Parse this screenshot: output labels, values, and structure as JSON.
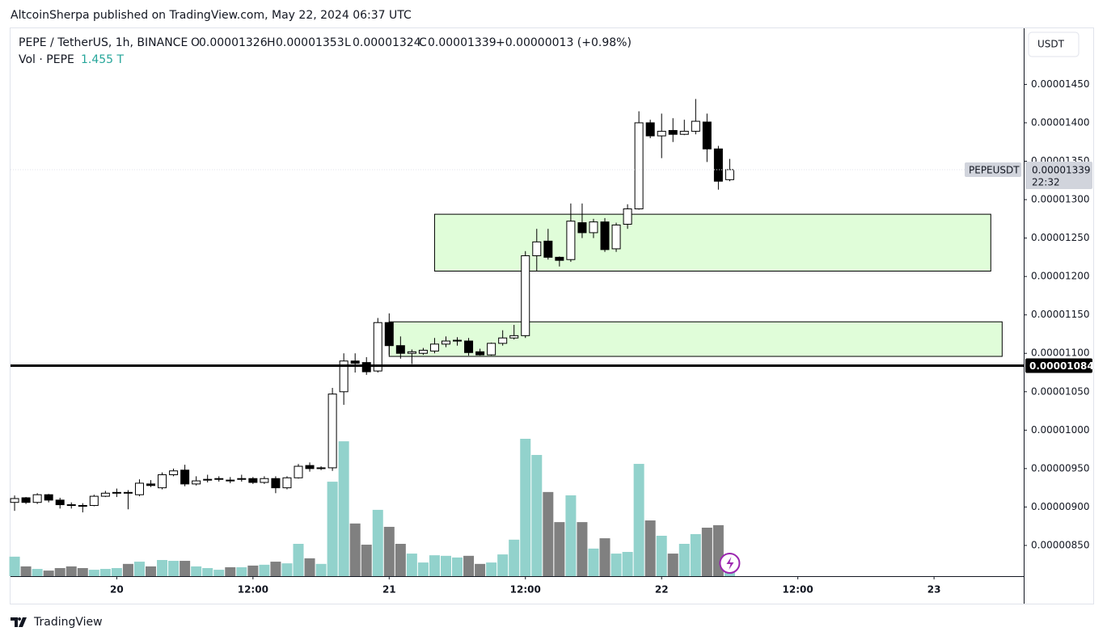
{
  "header": {
    "byline": "AltcoinSherpa published on TradingView.com, May 22, 2024 06:37 UTC",
    "brand": "TradingView"
  },
  "chart_data": {
    "type": "candlestick",
    "legend": {
      "symbol": "PEPE / TetherUS, 1h, BINANCE",
      "o": "O",
      "h": "H",
      "l": "L",
      "c": "C",
      "change": "+0.00000013 (+0.98%)",
      "volume_name": "Vol · PEPE",
      "last_volume_label": "1.455 T"
    },
    "currency": "USDT",
    "ticker": "PEPEUSDT",
    "countdown": "22:32",
    "x": [
      0,
      1,
      2,
      3,
      4,
      5,
      6,
      7,
      8,
      9,
      10,
      11,
      12,
      13,
      14,
      15,
      16,
      17,
      18,
      19,
      20,
      21,
      22,
      23,
      24,
      25,
      26,
      27,
      28,
      29,
      30,
      31,
      32,
      33,
      34,
      35,
      36,
      37,
      38,
      39,
      40,
      41,
      42,
      43,
      44,
      45,
      46,
      47,
      48,
      49,
      50,
      51,
      52,
      53,
      54,
      55,
      56,
      57,
      58,
      59,
      60,
      61,
      62,
      63
    ],
    "open": [
      9.06e-06,
      9.12e-06,
      9.06e-06,
      9.16e-06,
      9.09e-06,
      9.03e-06,
      9.02e-06,
      9.02e-06,
      9.14e-06,
      9.18e-06,
      9.19e-06,
      9.16e-06,
      9.3e-06,
      9.25e-06,
      9.42e-06,
      9.48e-06,
      9.3e-06,
      9.35e-06,
      9.36e-06,
      9.35e-06,
      9.36e-06,
      9.37e-06,
      9.32e-06,
      9.37e-06,
      9.25e-06,
      9.38e-06,
      9.54e-06,
      9.5e-06,
      9.51e-06,
      1.05e-05,
      1.09e-05,
      1.088e-05,
      1.077e-05,
      1.14e-05,
      1.11e-05,
      1.1e-05,
      1.1e-05,
      1.103e-05,
      1.112e-05,
      1.116e-05,
      1.116e-05,
      1.102e-05,
      1.098e-05,
      1.113e-05,
      1.12e-05,
      1.123e-05,
      1.227e-05,
      1.246e-05,
      1.225e-05,
      1.222e-05,
      1.27e-05,
      1.257e-05,
      1.271e-05,
      1.236e-05,
      1.268e-05,
      1.288e-05,
      1.4e-05,
      1.383e-05,
      1.39e-05,
      1.385e-05,
      1.389e-05,
      1.401e-05,
      1.366e-05,
      1.326e-05
    ],
    "high": [
      9.15e-06,
      9.13e-06,
      9.18e-06,
      9.17e-06,
      9.12e-06,
      9.06e-06,
      9.05e-06,
      9.16e-06,
      9.21e-06,
      9.24e-06,
      9.22e-06,
      9.36e-06,
      9.35e-06,
      9.45e-06,
      9.5e-06,
      9.55e-06,
      9.4e-06,
      9.42e-06,
      9.4e-06,
      9.39e-06,
      9.42e-06,
      9.39e-06,
      9.4e-06,
      9.4e-06,
      9.4e-06,
      9.56e-06,
      9.58e-06,
      9.53e-06,
      1.055e-05,
      1.1e-05,
      1.1e-05,
      1.095e-05,
      1.146e-05,
      1.152e-05,
      1.122e-05,
      1.105e-05,
      1.107e-05,
      1.12e-05,
      1.122e-05,
      1.121e-05,
      1.12e-05,
      1.106e-05,
      1.114e-05,
      1.13e-05,
      1.137e-05,
      1.233e-05,
      1.262e-05,
      1.262e-05,
      1.226e-05,
      1.295e-05,
      1.295e-05,
      1.275e-05,
      1.276e-05,
      1.27e-05,
      1.294e-05,
      1.415e-05,
      1.404e-05,
      1.412e-05,
      1.406e-05,
      1.404e-05,
      1.431e-05,
      1.412e-05,
      1.37e-05,
      1.353e-05
    ],
    "low": [
      8.95e-06,
      9.04e-06,
      9.04e-06,
      9.06e-06,
      8.98e-06,
      8.98e-06,
      8.93e-06,
      9.01e-06,
      9.13e-06,
      9.13e-06,
      8.97e-06,
      9.14e-06,
      9.26e-06,
      9.23e-06,
      9.4e-06,
      9.27e-06,
      9.28e-06,
      9.32e-06,
      9.33e-06,
      9.31e-06,
      9.33e-06,
      9.3e-06,
      9.3e-06,
      9.18e-06,
      9.23e-06,
      9.37e-06,
      9.46e-06,
      9.48e-06,
      9.47e-06,
      1.033e-05,
      1.075e-05,
      1.072e-05,
      1.075e-05,
      1.098e-05,
      1.093e-05,
      1.086e-05,
      1.098e-05,
      1.1e-05,
      1.108e-05,
      1.11e-05,
      1.097e-05,
      1.097e-05,
      1.097e-05,
      1.11e-05,
      1.118e-05,
      1.12e-05,
      1.207e-05,
      1.222e-05,
      1.213e-05,
      1.219e-05,
      1.25e-05,
      1.25e-05,
      1.232e-05,
      1.232e-05,
      1.262e-05,
      1.287e-05,
      1.38e-05,
      1.354e-05,
      1.375e-05,
      1.384e-05,
      1.385e-05,
      1.349e-05,
      1.313e-05,
      1.324e-05
    ],
    "close": [
      9.11e-06,
      9.06e-06,
      9.16e-06,
      9.09e-06,
      9.03e-06,
      9.02e-06,
      9.01e-06,
      9.14e-06,
      9.18e-06,
      9.19e-06,
      9.18e-06,
      9.31e-06,
      9.28e-06,
      9.42e-06,
      9.47e-06,
      9.3e-06,
      9.34e-06,
      9.36e-06,
      9.37e-06,
      9.34e-06,
      9.37e-06,
      9.32e-06,
      9.37e-06,
      9.25e-06,
      9.38e-06,
      9.53e-06,
      9.5e-06,
      9.51e-06,
      1.047e-05,
      1.09e-05,
      1.087e-05,
      1.076e-05,
      1.14e-05,
      1.11e-05,
      1.1e-05,
      1.102e-05,
      1.104e-05,
      1.112e-05,
      1.116e-05,
      1.117e-05,
      1.101e-05,
      1.098e-05,
      1.113e-05,
      1.12e-05,
      1.123e-05,
      1.227e-05,
      1.245e-05,
      1.225e-05,
      1.221e-05,
      1.272e-05,
      1.257e-05,
      1.271e-05,
      1.235e-05,
      1.267e-05,
      1.288e-05,
      1.4e-05,
      1.383e-05,
      1.389e-05,
      1.385e-05,
      1.389e-05,
      1.402e-05,
      1.366e-05,
      1.324e-05,
      1.339e-05
    ],
    "volume": [
      7.0,
      3.5,
      2.6,
      2.0,
      2.9,
      3.5,
      2.9,
      2.3,
      2.6,
      2.9,
      4.4,
      5.2,
      3.5,
      5.8,
      5.5,
      5.5,
      3.5,
      2.9,
      2.3,
      3.2,
      3.2,
      3.8,
      4.1,
      5.2,
      4.6,
      11.6,
      6.4,
      4.4,
      33.9,
      48.4,
      18.9,
      11.3,
      23.8,
      17.7,
      11.6,
      8.1,
      4.9,
      7.5,
      7.3,
      6.7,
      7.3,
      4.4,
      4.9,
      7.8,
      13.1,
      49.3,
      43.5,
      30.2,
      19.4,
      29.0,
      19.4,
      9.9,
      13.6,
      8.1,
      8.7,
      40.3,
      20.0,
      14.5,
      8.1,
      11.6,
      15.1,
      17.4,
      18.3,
      1.455
    ],
    "volume_lim": [
      0,
      58
    ],
    "up_color": "#ffffff",
    "down_color": "#000000",
    "volume_up_color": "#92d2cc",
    "volume_down_color": "#808080",
    "xlim": [
      -0.36,
      88.9
    ],
    "xticks": [
      {
        "value": 9,
        "label": "20"
      },
      {
        "value": 21,
        "label": "12:00"
      },
      {
        "value": 33,
        "label": "21"
      },
      {
        "value": 45,
        "label": "12:00"
      },
      {
        "value": 57,
        "label": "22"
      },
      {
        "value": 69,
        "label": "12:00"
      },
      {
        "value": 81,
        "label": "23"
      }
    ],
    "ylim": [
      8.1e-06,
      1.523e-05
    ],
    "yticks": [
      {
        "value": 8.5e-06,
        "label": "0.00000850"
      },
      {
        "value": 9e-06,
        "label": "0.00000900"
      },
      {
        "value": 9.5e-06,
        "label": "0.00000950"
      },
      {
        "value": 1e-05,
        "label": "0.00001000"
      },
      {
        "value": 1.05e-05,
        "label": "0.00001050"
      },
      {
        "value": 1.1e-05,
        "label": "0.00001100"
      },
      {
        "value": 1.15e-05,
        "label": "0.00001150"
      },
      {
        "value": 1.2e-05,
        "label": "0.00001200"
      },
      {
        "value": 1.25e-05,
        "label": "0.00001250"
      },
      {
        "value": 1.3e-05,
        "label": "0.00001300"
      },
      {
        "value": 1.35e-05,
        "label": "0.00001350"
      },
      {
        "value": 1.4e-05,
        "label": "0.00001400"
      },
      {
        "value": 1.45e-05,
        "label": "0.00001450"
      }
    ],
    "hline": 1.084e-05,
    "zone_color": "#e0fdd9",
    "zones": [
      {
        "x": [
          37.0,
          86.0
        ],
        "y": [
          1.207e-05,
          1.281e-05
        ]
      },
      {
        "x": [
          33.0,
          87.0
        ],
        "y": [
          1.096e-05,
          1.141e-05
        ]
      }
    ]
  }
}
